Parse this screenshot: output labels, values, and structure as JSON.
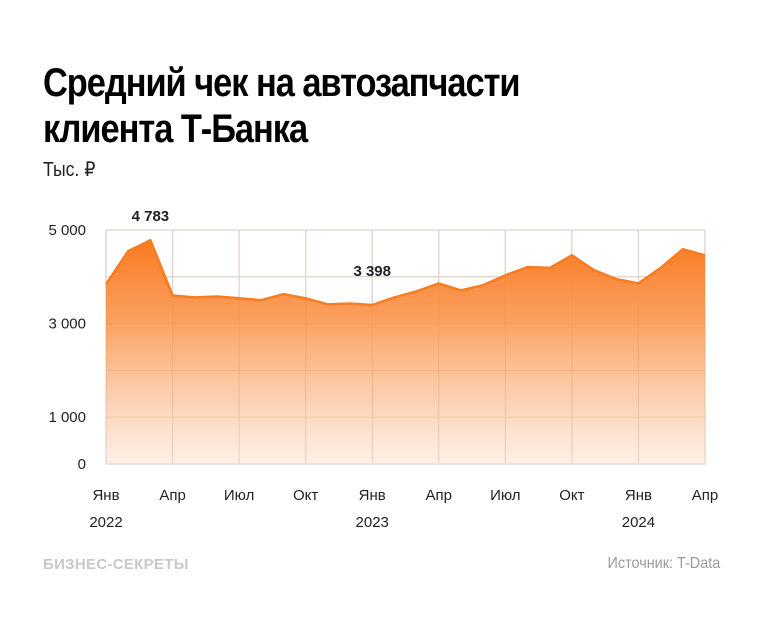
{
  "header": {
    "title": "Средний чек на автозапчасти клиента Т-Банка",
    "subtitle": "Тыс. ₽"
  },
  "footer": {
    "brand": "БИЗНЕС-СЕКРЕТЫ",
    "source": "Источник: T-Data"
  },
  "colors": {
    "accent": "#f97b22",
    "fill_top": "#f97b22",
    "fill_bottom": "#fdeee3",
    "grid": "#e6e6e6"
  },
  "chart_data": {
    "type": "area",
    "title": "Средний чек на автозапчасти клиента Т-Банка",
    "subtitle": "Тыс. ₽",
    "xlabel": "",
    "ylabel": "Тыс. ₽",
    "ylim": [
      0,
      5000
    ],
    "grid": true,
    "legend": null,
    "y_ticks": [
      {
        "value": 5000,
        "label": "5 000"
      },
      {
        "value": 3000,
        "label": "3 000"
      },
      {
        "value": 1000,
        "label": "1 000"
      },
      {
        "value": 0,
        "label": "0"
      }
    ],
    "x_ticks": [
      {
        "index": 0,
        "label": "Янв",
        "year": "2022"
      },
      {
        "index": 3,
        "label": "Апр",
        "year": ""
      },
      {
        "index": 6,
        "label": "Июл",
        "year": ""
      },
      {
        "index": 9,
        "label": "Окт",
        "year": ""
      },
      {
        "index": 12,
        "label": "Янв",
        "year": "2023"
      },
      {
        "index": 15,
        "label": "Апр",
        "year": ""
      },
      {
        "index": 18,
        "label": "Июл",
        "year": ""
      },
      {
        "index": 21,
        "label": "Окт",
        "year": ""
      },
      {
        "index": 24,
        "label": "Янв",
        "year": "2024"
      },
      {
        "index": 27,
        "label": "Апр",
        "year": ""
      }
    ],
    "x": [
      "2022-01",
      "2022-02",
      "2022-03",
      "2022-04",
      "2022-05",
      "2022-06",
      "2022-07",
      "2022-08",
      "2022-09",
      "2022-10",
      "2022-11",
      "2022-12",
      "2023-01",
      "2023-02",
      "2023-03",
      "2023-04",
      "2023-05",
      "2023-06",
      "2023-07",
      "2023-08",
      "2023-09",
      "2023-10",
      "2023-11",
      "2023-12",
      "2024-01",
      "2024-02",
      "2024-03",
      "2024-04"
    ],
    "series": [
      {
        "name": "Средний чек",
        "values": [
          3840,
          4550,
          4783,
          3600,
          3560,
          3580,
          3540,
          3500,
          3630,
          3540,
          3410,
          3430,
          3398,
          3560,
          3690,
          3860,
          3710,
          3820,
          4030,
          4210,
          4190,
          4460,
          4140,
          3950,
          3860,
          4190,
          4590,
          4460
        ]
      }
    ],
    "annotations": [
      {
        "index": 2,
        "label": "4 783"
      },
      {
        "index": 12,
        "label": "3 398"
      }
    ]
  }
}
